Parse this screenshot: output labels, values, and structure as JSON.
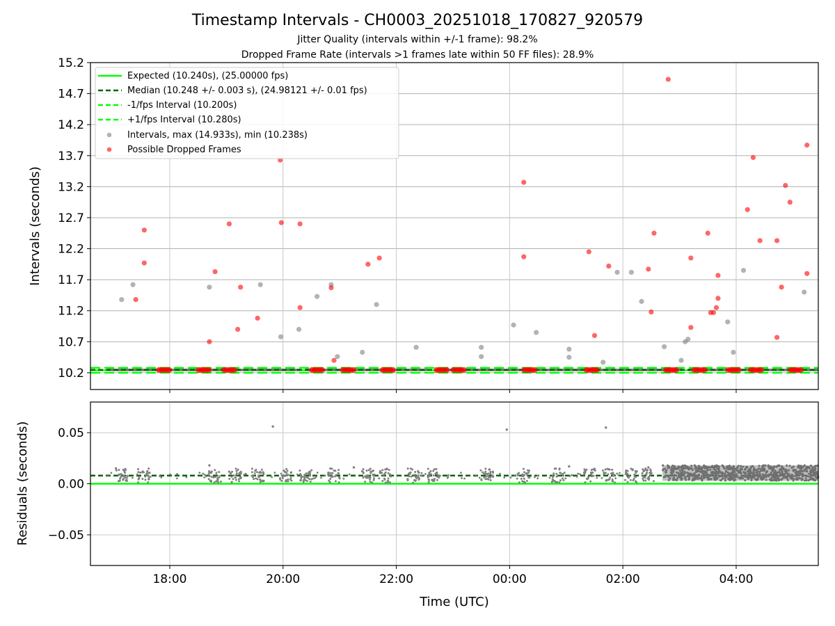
{
  "chart_data": [
    {
      "type": "scatter",
      "title": "Timestamp Intervals - CH0003_20251018_170827_920579",
      "subtitle_1": "Jitter Quality (intervals within +/-1 frame): 98.2%",
      "subtitle_2": "Dropped Frame Rate (intervals >1 frames late within 50 FF files): 28.9%",
      "ylabel": "Intervals (seconds)",
      "ylim": [
        9.93,
        15.2
      ],
      "yticks": [
        "10.2",
        "10.7",
        "11.2",
        "11.7",
        "12.2",
        "12.7",
        "13.2",
        "13.7",
        "14.2",
        "14.7",
        "15.2"
      ],
      "xlim_hours": [
        -7.4,
        5.45
      ],
      "grid": true,
      "legend_position": "upper-left",
      "legend": {
        "expected": "Expected (10.240s), (25.00000 fps)",
        "median": "Median (10.248 +/- 0.003 s), (24.98121 +/- 0.01 fps)",
        "minus_fps": "-1/fps Interval (10.200s)",
        "plus_fps": "+1/fps Interval (10.280s)",
        "intervals": "Intervals, max (14.933s), min (10.238s)",
        "dropped": "Possible Dropped Frames"
      },
      "reference_lines": {
        "expected": 10.24,
        "median": 10.248,
        "minus_fps": 10.2,
        "plus_fps": 10.28
      },
      "baseline_value": 10.245,
      "baseline_runs_hours": [
        [
          -7.1,
          -3.7
        ],
        [
          -3.6,
          -1.45
        ],
        [
          -1.3,
          3.05
        ],
        [
          3.15,
          5.45
        ]
      ],
      "dropped_baseline_clusters_hours": [
        -6.1,
        -5.4,
        -4.95,
        -3.4,
        -2.85,
        -2.15,
        -1.2,
        -0.9,
        0.35,
        1.45,
        2.85,
        3.35,
        3.95,
        4.35,
        5.05
      ],
      "series": [
        {
          "name": "Intervals",
          "points": [
            [
              -6.85,
              11.38
            ],
            [
              -6.65,
              11.62
            ],
            [
              -5.3,
              11.58
            ],
            [
              -4.4,
              11.62
            ],
            [
              -4.04,
              10.78
            ],
            [
              -3.72,
              10.9
            ],
            [
              -3.4,
              11.43
            ],
            [
              -3.15,
              11.62
            ],
            [
              -3.04,
              10.46
            ],
            [
              -2.6,
              10.53
            ],
            [
              -2.35,
              11.3
            ],
            [
              -1.65,
              10.61
            ],
            [
              -0.5,
              10.61
            ],
            [
              -0.5,
              10.46
            ],
            [
              0.07,
              10.97
            ],
            [
              0.47,
              10.85
            ],
            [
              1.05,
              10.58
            ],
            [
              1.05,
              10.45
            ],
            [
              1.65,
              10.37
            ],
            [
              1.9,
              11.82
            ],
            [
              2.15,
              11.82
            ],
            [
              2.33,
              11.35
            ],
            [
              2.73,
              10.62
            ],
            [
              3.1,
              10.7
            ],
            [
              3.15,
              10.74
            ],
            [
              3.03,
              10.4
            ],
            [
              3.85,
              11.02
            ],
            [
              3.95,
              10.53
            ],
            [
              4.13,
              11.85
            ],
            [
              5.2,
              11.5
            ]
          ]
        },
        {
          "name": "Possible Dropped Frames",
          "points": [
            [
              -6.6,
              11.38
            ],
            [
              -6.45,
              12.5
            ],
            [
              -6.45,
              11.97
            ],
            [
              -5.3,
              10.7
            ],
            [
              -5.2,
              11.83
            ],
            [
              -4.95,
              12.6
            ],
            [
              -4.8,
              10.9
            ],
            [
              -4.75,
              11.58
            ],
            [
              -4.45,
              11.08
            ],
            [
              -4.05,
              13.63
            ],
            [
              -4.03,
              12.62
            ],
            [
              -3.7,
              12.6
            ],
            [
              -3.7,
              11.25
            ],
            [
              -3.15,
              11.57
            ],
            [
              -3.1,
              10.4
            ],
            [
              -2.5,
              11.95
            ],
            [
              -2.3,
              12.05
            ],
            [
              0.25,
              13.27
            ],
            [
              0.25,
              12.07
            ],
            [
              1.4,
              12.15
            ],
            [
              1.5,
              10.8
            ],
            [
              1.75,
              11.92
            ],
            [
              2.45,
              11.87
            ],
            [
              2.5,
              11.18
            ],
            [
              2.55,
              12.45
            ],
            [
              2.8,
              14.93
            ],
            [
              3.2,
              12.05
            ],
            [
              3.2,
              10.93
            ],
            [
              3.5,
              12.45
            ],
            [
              3.55,
              11.17
            ],
            [
              3.6,
              11.17
            ],
            [
              3.65,
              11.25
            ],
            [
              3.68,
              11.77
            ],
            [
              3.68,
              11.4
            ],
            [
              4.2,
              12.83
            ],
            [
              4.3,
              13.67
            ],
            [
              4.42,
              12.33
            ],
            [
              4.72,
              12.33
            ],
            [
              4.72,
              10.77
            ],
            [
              4.8,
              11.58
            ],
            [
              4.87,
              13.22
            ],
            [
              4.95,
              12.95
            ],
            [
              5.25,
              13.87
            ],
            [
              5.25,
              11.8
            ]
          ]
        }
      ]
    },
    {
      "type": "scatter",
      "xlabel": "Time (UTC)",
      "ylabel": "Residuals (seconds)",
      "ylim": [
        -0.08,
        0.08
      ],
      "yticks": [
        "−0.05",
        "0.00",
        "0.05"
      ],
      "xlim_hours": [
        -7.4,
        5.45
      ],
      "xticks": [
        "18:00",
        "20:00",
        "22:00",
        "00:00",
        "02:00",
        "04:00"
      ],
      "xtick_hours": [
        -6,
        -4,
        -2,
        0,
        2,
        4
      ],
      "grid": true,
      "reference_lines": {
        "expected": 0.0,
        "median": 0.008
      },
      "dense_band": {
        "x_range_hours": [
          2.7,
          5.45
        ],
        "y_range": [
          0.003,
          0.018
        ]
      },
      "clusters": [
        -6.85,
        -6.45,
        -5.2,
        -4.85,
        -4.45,
        -3.95,
        -3.6,
        -3.1,
        -2.5,
        -2.2,
        -1.7,
        -1.35,
        -0.4,
        0.25,
        0.85,
        1.4,
        1.75,
        2.15,
        2.45
      ],
      "outliers": [
        [
          -4.18,
          0.056
        ],
        [
          -0.05,
          0.053
        ],
        [
          1.7,
          0.055
        ],
        [
          -6.95,
          0.015
        ],
        [
          -5.3,
          0.018
        ],
        [
          1.05,
          0.017
        ],
        [
          -2.75,
          0.016
        ],
        [
          2.45,
          0.016
        ]
      ]
    }
  ]
}
